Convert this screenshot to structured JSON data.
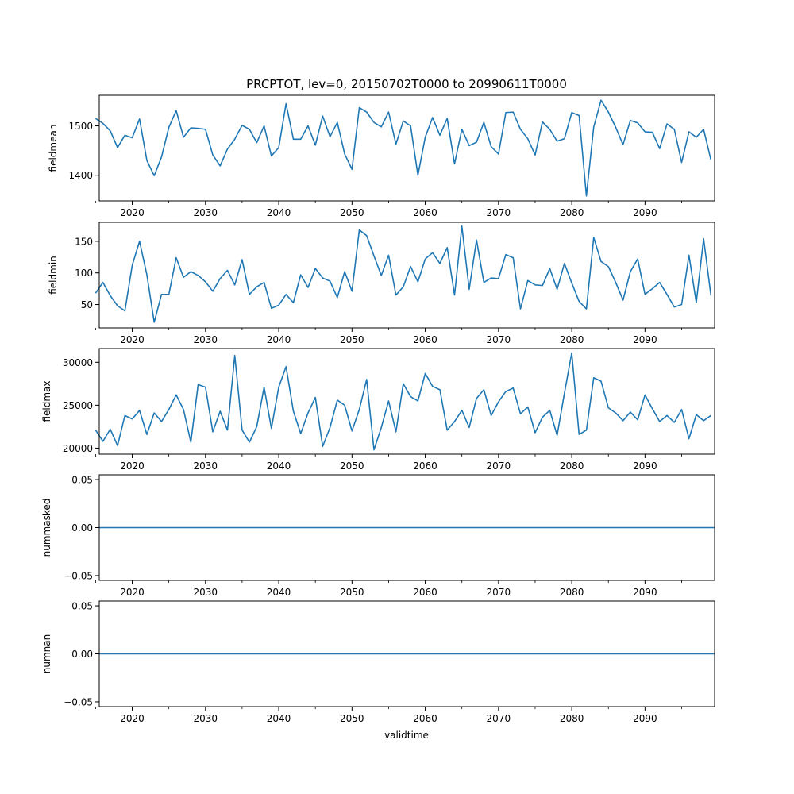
{
  "chart_data": {
    "type": "line",
    "title": "PRCPTOT, lev=0, 20150702T0000 to 20990611T0000",
    "xlabel": "validtime",
    "xlim": [
      2015.5,
      2099.5
    ],
    "x_ticks": [
      2020,
      2030,
      2040,
      2050,
      2060,
      2070,
      2080,
      2090
    ],
    "x_tick_labels": [
      "2020",
      "2030",
      "2040",
      "2050",
      "2060",
      "2070",
      "2080",
      "2090"
    ],
    "line_color": "#1f77b4",
    "x_years": [
      2015,
      2016,
      2017,
      2018,
      2019,
      2020,
      2021,
      2022,
      2023,
      2024,
      2025,
      2026,
      2027,
      2028,
      2029,
      2030,
      2031,
      2032,
      2033,
      2034,
      2035,
      2036,
      2037,
      2038,
      2039,
      2040,
      2041,
      2042,
      2043,
      2044,
      2045,
      2046,
      2047,
      2048,
      2049,
      2050,
      2051,
      2052,
      2053,
      2054,
      2055,
      2056,
      2057,
      2058,
      2059,
      2060,
      2061,
      2062,
      2063,
      2064,
      2065,
      2066,
      2067,
      2068,
      2069,
      2070,
      2071,
      2072,
      2073,
      2074,
      2075,
      2076,
      2077,
      2078,
      2079,
      2080,
      2081,
      2082,
      2083,
      2084,
      2085,
      2086,
      2087,
      2088,
      2089,
      2090,
      2091,
      2092,
      2093,
      2094,
      2095,
      2096,
      2097,
      2098,
      2099
    ],
    "panels": [
      {
        "ylabel": "fieldmean",
        "ylim": [
          1348,
          1562
        ],
        "y_ticks": [
          1400,
          1500
        ],
        "y_tick_labels": [
          "1400",
          "1500"
        ],
        "values": [
          1515,
          1505,
          1490,
          1456,
          1481,
          1476,
          1514,
          1430,
          1399,
          1437,
          1497,
          1531,
          1477,
          1496,
          1495,
          1493,
          1441,
          1419,
          1453,
          1473,
          1501,
          1493,
          1466,
          1500,
          1439,
          1456,
          1545,
          1473,
          1473,
          1500,
          1461,
          1520,
          1478,
          1507,
          1443,
          1412,
          1537,
          1528,
          1507,
          1498,
          1528,
          1463,
          1510,
          1500,
          1400,
          1477,
          1517,
          1481,
          1515,
          1423,
          1493,
          1460,
          1467,
          1507,
          1458,
          1443,
          1527,
          1528,
          1493,
          1474,
          1441,
          1508,
          1493,
          1469,
          1474,
          1527,
          1521,
          1358,
          1498,
          1552,
          1528,
          1497,
          1462,
          1511,
          1506,
          1488,
          1487,
          1454,
          1504,
          1493,
          1426,
          1488,
          1477,
          1493,
          1431
        ]
      },
      {
        "ylabel": "fieldmin",
        "ylim": [
          13,
          180
        ],
        "y_ticks": [
          50,
          100,
          150
        ],
        "y_tick_labels": [
          "50",
          "100",
          "150"
        ],
        "values": [
          68,
          85,
          64,
          48,
          40,
          112,
          150,
          97,
          22,
          66,
          66,
          124,
          93,
          102,
          96,
          86,
          71,
          91,
          104,
          81,
          121,
          66,
          78,
          85,
          44,
          49,
          66,
          53,
          97,
          77,
          107,
          92,
          87,
          61,
          102,
          71,
          168,
          159,
          127,
          96,
          128,
          65,
          78,
          110,
          86,
          122,
          132,
          115,
          140,
          65,
          174,
          74,
          152,
          85,
          92,
          91,
          129,
          124,
          43,
          88,
          81,
          80,
          107,
          74,
          115,
          84,
          55,
          43,
          156,
          118,
          110,
          85,
          57,
          102,
          122,
          66,
          75,
          85,
          66,
          46,
          50,
          128,
          53,
          154,
          64
        ]
      },
      {
        "ylabel": "fieldmax",
        "ylim": [
          19300,
          31600
        ],
        "y_ticks": [
          20000,
          25000,
          30000
        ],
        "y_tick_labels": [
          "20000",
          "25000",
          "30000"
        ],
        "values": [
          22100,
          20800,
          22200,
          20300,
          23800,
          23400,
          24400,
          21600,
          24100,
          23100,
          24500,
          26200,
          24500,
          20700,
          27400,
          27100,
          21900,
          24300,
          22100,
          30800,
          22100,
          20700,
          22500,
          27100,
          22300,
          27100,
          29500,
          24300,
          21700,
          24100,
          25900,
          20200,
          22400,
          25600,
          25000,
          22000,
          24500,
          28000,
          19800,
          22400,
          25500,
          21900,
          27500,
          26000,
          25500,
          28700,
          27200,
          26800,
          22100,
          23100,
          24400,
          22400,
          25800,
          26800,
          23800,
          25400,
          26600,
          27000,
          24000,
          24800,
          21800,
          23600,
          24400,
          21500,
          26400,
          31100,
          21600,
          22100,
          28200,
          27800,
          24700,
          24100,
          23200,
          24200,
          23300,
          26200,
          24600,
          23100,
          23800,
          23000,
          24500,
          21100,
          23900,
          23200,
          23800
        ]
      },
      {
        "ylabel": "nummasked",
        "ylim": [
          -0.055,
          0.055
        ],
        "y_ticks": [
          -0.05,
          0.0,
          0.05
        ],
        "y_tick_labels": [
          "−0.05",
          "0.00",
          "0.05"
        ],
        "constant": 0
      },
      {
        "ylabel": "numnan",
        "ylim": [
          -0.055,
          0.055
        ],
        "y_ticks": [
          -0.05,
          0.0,
          0.05
        ],
        "y_tick_labels": [
          "−0.05",
          "0.00",
          "0.05"
        ],
        "constant": 0
      }
    ]
  }
}
